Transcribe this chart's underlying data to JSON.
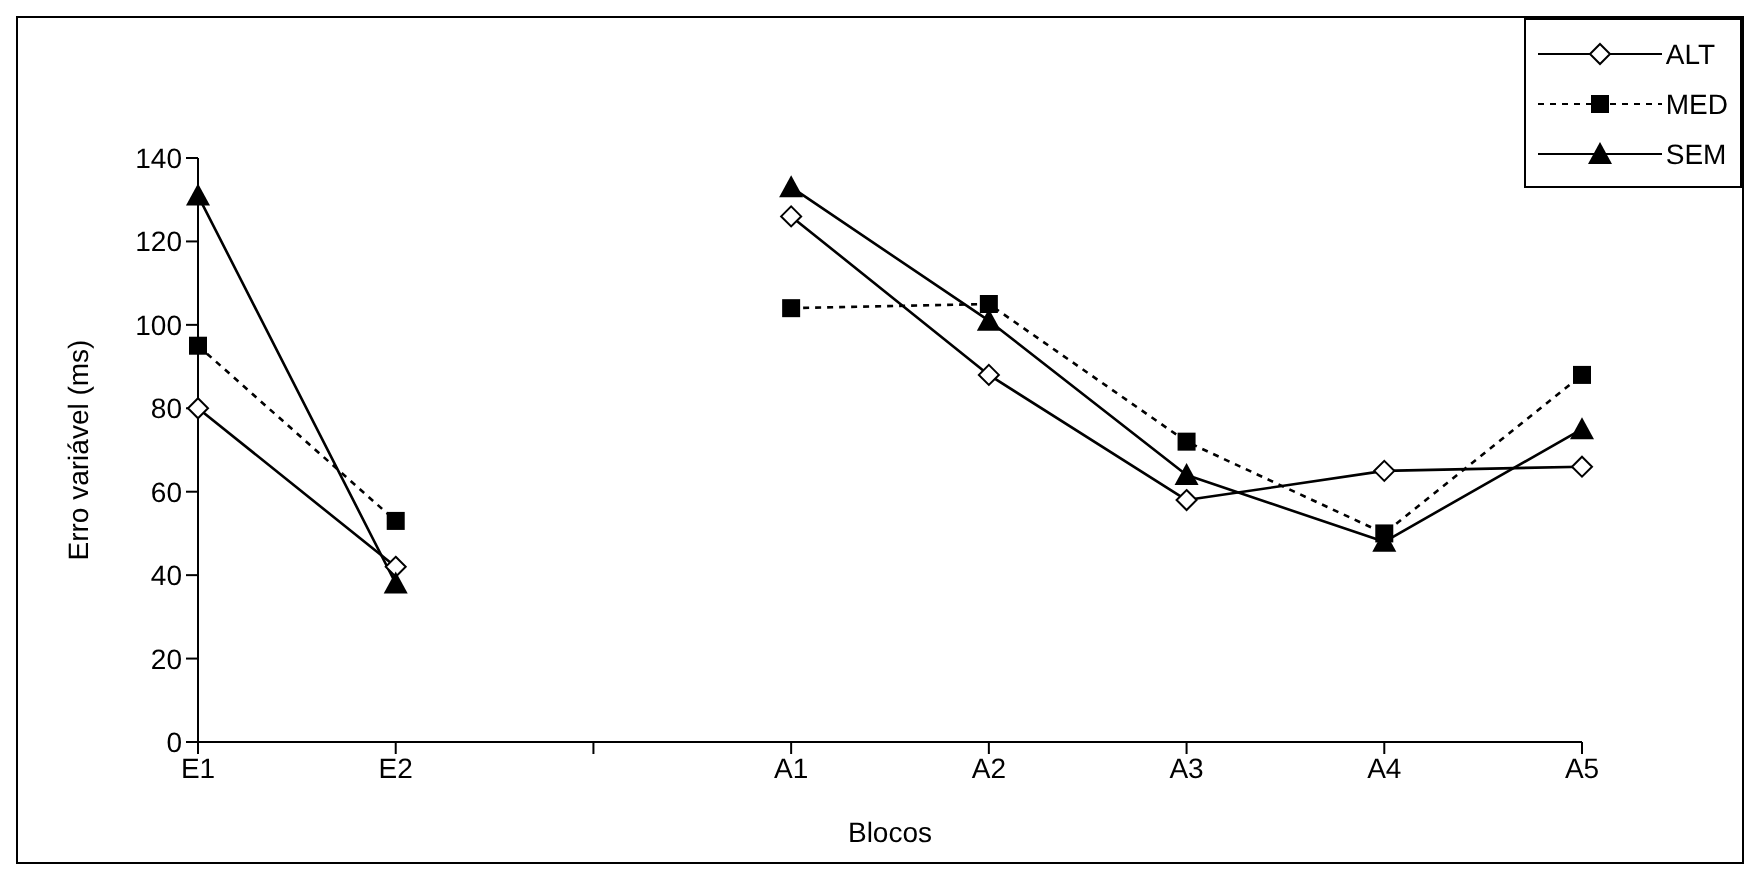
{
  "chart_data": {
    "type": "line",
    "xlabel": "Blocos",
    "ylabel": "Erro variável (ms)",
    "categories": [
      "E1",
      "E2",
      null,
      "A1",
      "A2",
      "A3",
      "A4",
      "A5"
    ],
    "series": [
      {
        "name": "ALT",
        "color": "#000000",
        "marker": "diamond",
        "line_style": "solid",
        "values": [
          80,
          42,
          null,
          126,
          88,
          58,
          65,
          66
        ]
      },
      {
        "name": "MED",
        "color": "#000000",
        "marker": "square",
        "line_style": "dotted",
        "values": [
          95,
          53,
          null,
          104,
          105,
          72,
          50,
          88
        ]
      },
      {
        "name": "SEM",
        "color": "#000000",
        "marker": "triangle",
        "line_style": "solid",
        "values": [
          131,
          38,
          null,
          133,
          101,
          64,
          48,
          75
        ]
      }
    ],
    "ylim": [
      0,
      140
    ],
    "yticks": [
      0,
      20,
      40,
      60,
      80,
      100,
      120,
      140
    ],
    "grid": false,
    "legend": "top right"
  }
}
